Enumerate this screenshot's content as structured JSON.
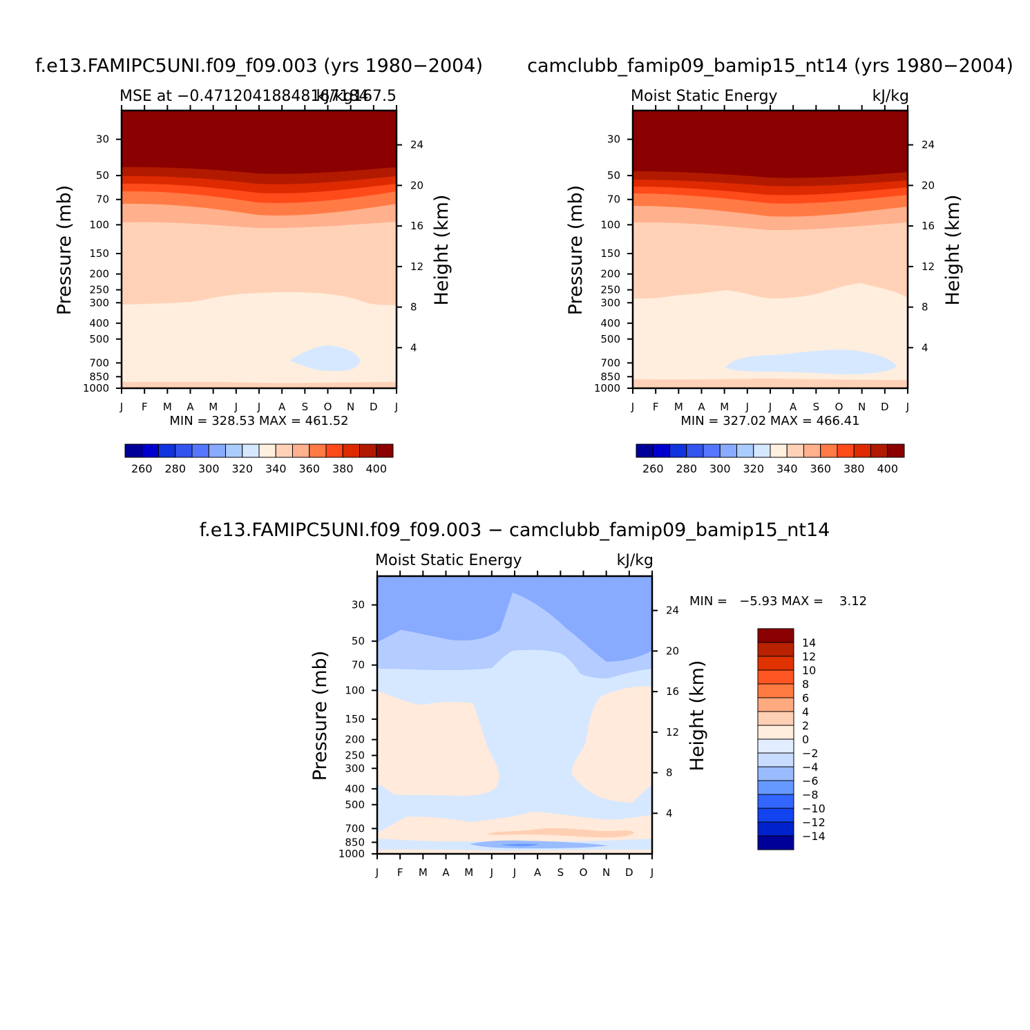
{
  "panels": [
    {
      "case_title": "f.e13.FAMIPC5UNI.f09_f09.003 (yrs 1980−2004)",
      "left_title": "MSE at −0.47120418848167184",
      "right_title": "kJ/kg167.5",
      "min_max": "MIN = 328.53 MAX = 461.52",
      "y_label": "Pressure (mb)",
      "y2_label": "Height (km)"
    },
    {
      "case_title": "camclubb_famip09_bamip15_nt14 (yrs 1980−2004)",
      "left_title": "Moist Static Energy",
      "right_title": "kJ/kg",
      "min_max": "MIN = 327.02 MAX = 466.41",
      "y_label": "Pressure (mb)",
      "y2_label": "Height (km)"
    },
    {
      "case_title": "f.e13.FAMIPC5UNI.f09_f09.003 − camclubb_famip09_bamip15_nt14",
      "left_title": "Moist Static Energy",
      "right_title": "kJ/kg",
      "min_max": "MIN =   −5.93 MAX =    3.12",
      "y_label": "Pressure (mb)",
      "y2_label": "Height (km)"
    }
  ],
  "colorbar_main": {
    "colors": [
      "#000099",
      "#0000cc",
      "#1133dd",
      "#3355ee",
      "#5577ff",
      "#88aaff",
      "#aaccff",
      "#d6e8ff",
      "#fff0e0",
      "#ffd2b8",
      "#ffb08c",
      "#ff7a45",
      "#ff4a1a",
      "#dd2a00",
      "#b21a00",
      "#8b0000"
    ],
    "labels": [
      "260",
      "280",
      "300",
      "320",
      "340",
      "360",
      "380",
      "400"
    ]
  },
  "colorbar_diff": {
    "colors": [
      "#000099",
      "#0022cc",
      "#1144ee",
      "#3366ff",
      "#6699ff",
      "#99bbff",
      "#c8dcff",
      "#e2eeff",
      "#ffeedd",
      "#ffcfb3",
      "#ffaa80",
      "#ff7a40",
      "#ff5522",
      "#e03300",
      "#b82200",
      "#8b0000"
    ],
    "labels": [
      "14",
      "12",
      "10",
      "8",
      "6",
      "4",
      "2",
      "0",
      "−2",
      "−4",
      "−6",
      "−8",
      "−10",
      "−12",
      "−14"
    ]
  },
  "chart_data": [
    {
      "type": "heatmap",
      "title": "MSE at −0.47120418848167184",
      "subtitle": "f.e13.FAMIPC5UNI.f09_f09.003 (yrs 1980−2004)",
      "units": "kJ/kg167.5",
      "xlabel": "",
      "ylabel": "Pressure (mb)",
      "y2label": "Height (km)",
      "x_ticks": [
        "J",
        "F",
        "M",
        "A",
        "M",
        "J",
        "J",
        "A",
        "S",
        "O",
        "N",
        "D",
        "J"
      ],
      "y_ticks": [
        30,
        50,
        70,
        100,
        150,
        200,
        250,
        300,
        400,
        500,
        700,
        850,
        1000
      ],
      "y_scale": "log",
      "ylim": [
        1000,
        20
      ],
      "height_ticks": [
        4,
        8,
        12,
        16,
        20,
        24
      ],
      "contour_levels": [
        250,
        260,
        270,
        280,
        290,
        300,
        310,
        320,
        330,
        340,
        350,
        360,
        370,
        380,
        390,
        400
      ],
      "min": 328.53,
      "max": 461.52,
      "bands": [
        {
          "value": 335,
          "top_mb": [
            330,
            328,
            327,
            325,
            308,
            286,
            279,
            280,
            282,
            295,
            325,
            332,
            330
          ]
        },
        {
          "value": 345,
          "top_mb": [
            113,
            111,
            112,
            115,
            117,
            120,
            122,
            122,
            120,
            117,
            114,
            112,
            113
          ]
        },
        {
          "value": 355,
          "top_mb": [
            90,
            90,
            92,
            95,
            98,
            101,
            103,
            103,
            101,
            98,
            94,
            91,
            90
          ]
        },
        {
          "value": 365,
          "top_mb": [
            74,
            74,
            75,
            78,
            82,
            85,
            87,
            87,
            85,
            81,
            77,
            75,
            74
          ]
        },
        {
          "value": 375,
          "top_mb": [
            64,
            64,
            65,
            67,
            70,
            73,
            75,
            75,
            73,
            70,
            67,
            65,
            64
          ]
        },
        {
          "value": 385,
          "top_mb": [
            56,
            56,
            57,
            58,
            60,
            62,
            63,
            63,
            62,
            60,
            58,
            57,
            56
          ]
        },
        {
          "value": 395,
          "top_mb": [
            50,
            50,
            51,
            52,
            53,
            55,
            56,
            56,
            55,
            53,
            52,
            51,
            50
          ]
        }
      ],
      "features": [
        {
          "value": 325,
          "desc": "closed",
          "x_months": [
            8.2,
            10.2
          ],
          "p_mb": [
            560,
            800
          ]
        },
        {
          "value": 345,
          "desc": "near surface",
          "x_months": [
            0,
            12
          ],
          "p_mb": [
            900,
            1000
          ]
        }
      ]
    },
    {
      "type": "heatmap",
      "title": "Moist Static Energy",
      "subtitle": "camclubb_famip09_bamip15_nt14 (yrs 1980−2004)",
      "units": "kJ/kg",
      "xlabel": "",
      "ylabel": "Pressure (mb)",
      "y2label": "Height (km)",
      "x_ticks": [
        "J",
        "F",
        "M",
        "A",
        "M",
        "J",
        "J",
        "A",
        "S",
        "O",
        "N",
        "D",
        "J"
      ],
      "y_ticks": [
        30,
        50,
        70,
        100,
        150,
        200,
        250,
        300,
        400,
        500,
        700,
        850,
        1000
      ],
      "y_scale": "log",
      "ylim": [
        1000,
        20
      ],
      "height_ticks": [
        4,
        8,
        12,
        16,
        20,
        24
      ],
      "contour_levels": [
        250,
        260,
        270,
        280,
        290,
        300,
        310,
        320,
        330,
        340,
        350,
        360,
        370,
        380,
        390,
        400
      ],
      "min": 327.02,
      "max": 466.41,
      "bands": [
        {
          "value": 335,
          "top_mb": [
            310,
            305,
            292,
            290,
            276,
            288,
            302,
            302,
            292,
            272,
            242,
            262,
            302
          ]
        },
        {
          "value": 345,
          "top_mb": [
            113,
            112,
            113,
            116,
            118,
            121,
            124,
            124,
            122,
            119,
            116,
            114,
            113
          ]
        },
        {
          "value": 355,
          "top_mb": [
            90,
            90,
            91,
            93,
            96,
            99,
            101,
            101,
            99,
            96,
            93,
            91,
            90
          ]
        },
        {
          "value": 365,
          "top_mb": [
            75,
            75,
            76,
            78,
            80,
            83,
            85,
            85,
            83,
            80,
            78,
            76,
            75
          ]
        },
        {
          "value": 375,
          "top_mb": [
            65,
            65,
            66,
            67,
            69,
            71,
            72,
            72,
            71,
            69,
            67,
            66,
            65
          ]
        },
        {
          "value": 385,
          "top_mb": [
            57,
            57,
            58,
            59,
            60,
            61,
            62,
            62,
            61,
            60,
            59,
            58,
            57
          ]
        },
        {
          "value": 395,
          "top_mb": [
            51,
            51,
            52,
            53,
            54,
            55,
            56,
            56,
            55,
            54,
            53,
            52,
            51
          ]
        }
      ],
      "features": [
        {
          "value": 325,
          "desc": "closed",
          "x_months": [
            4.1,
            11.5
          ],
          "p_mb": [
            600,
            820
          ]
        },
        {
          "value": 345,
          "desc": "near surface",
          "x_months": [
            0,
            12
          ],
          "p_mb": [
            880,
            1000
          ]
        }
      ]
    },
    {
      "type": "heatmap",
      "title": "Moist Static Energy",
      "subtitle": "f.e13.FAMIPC5UNI.f09_f09.003 − camclubb_famip09_bamip15_nt14",
      "units": "kJ/kg",
      "xlabel": "",
      "ylabel": "Pressure (mb)",
      "y2label": "Height (km)",
      "x_ticks": [
        "J",
        "F",
        "M",
        "A",
        "M",
        "J",
        "J",
        "A",
        "S",
        "O",
        "N",
        "D",
        "J"
      ],
      "y_ticks": [
        30,
        50,
        70,
        100,
        150,
        200,
        250,
        300,
        400,
        500,
        700,
        850,
        1000
      ],
      "y_scale": "log",
      "ylim": [
        1000,
        20
      ],
      "height_ticks": [
        4,
        8,
        12,
        16,
        20,
        24
      ],
      "contour_levels": [
        -14,
        -12,
        -10,
        -8,
        -6,
        -4,
        -2,
        0,
        2,
        4,
        6,
        8,
        10,
        12,
        14
      ],
      "min": -5.93,
      "max": 3.12,
      "regions": [
        {
          "value": -5,
          "desc": "upper stratosphere, most months"
        },
        {
          "value": -3,
          "desc": "band near 50–90 mb"
        },
        {
          "value": -1,
          "desc": "upper troposphere / tropopause region"
        },
        {
          "value": 1,
          "desc": "JFMAM 120–450 mb"
        },
        {
          "value": 1,
          "desc": "NDJ 120–450 mb"
        },
        {
          "value": 1,
          "desc": "lower troposphere band near 700–850 mb"
        },
        {
          "value": 3,
          "desc": "thin strip JJASOND near 780 mb"
        },
        {
          "value": -5,
          "desc": "small pocket JJA near 900 mb"
        }
      ]
    }
  ]
}
